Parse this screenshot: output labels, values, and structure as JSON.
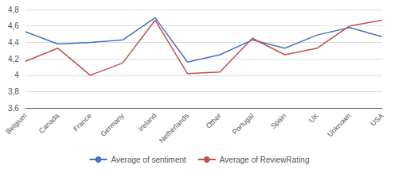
{
  "chart_data": {
    "type": "line",
    "categories": [
      "Belgium",
      "Canada",
      "France",
      "Germany",
      "Ireland",
      "Netherlands",
      "Other",
      "Portugal",
      "Spain",
      "UK",
      "Unknown",
      "USA"
    ],
    "series": [
      {
        "name": "Average of sentiment",
        "color": "#4472C4",
        "values": [
          4.53,
          4.38,
          4.4,
          4.43,
          4.7,
          4.16,
          4.25,
          4.43,
          4.33,
          4.49,
          4.58,
          4.47
        ]
      },
      {
        "name": "Average of ReviewRating",
        "color": "#C0504D",
        "values": [
          4.17,
          4.33,
          4.0,
          4.15,
          4.67,
          4.02,
          4.04,
          4.45,
          4.25,
          4.33,
          4.6,
          4.67
        ]
      }
    ],
    "ylim": [
      3.6,
      4.8
    ],
    "yticks": [
      {
        "value": 3.6,
        "label": "3,6"
      },
      {
        "value": 3.8,
        "label": "3,8"
      },
      4,
      {
        "value": 4.2,
        "label": "4,2"
      },
      {
        "value": 4.4,
        "label": "4,4"
      },
      {
        "value": 4.6,
        "label": "4,6"
      },
      {
        "value": 4.8,
        "label": "4,8"
      }
    ],
    "grid": true,
    "legend": "bottom"
  }
}
